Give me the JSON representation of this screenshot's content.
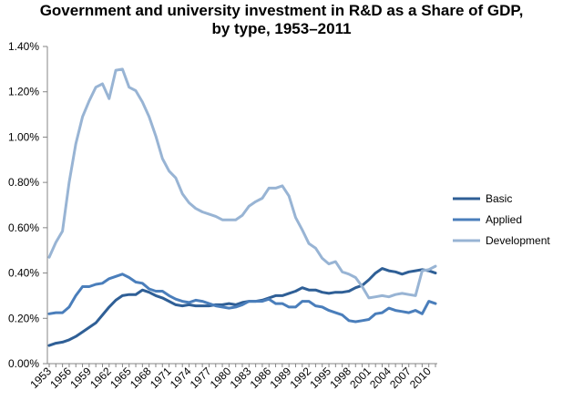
{
  "chart_data": {
    "type": "line",
    "title_lines": [
      "Government and university investment in R&D as a Share of GDP,",
      "by type, 1953–2011"
    ],
    "xlabel": "",
    "ylabel": "",
    "x_range": [
      1953,
      2011
    ],
    "x_tick_labels": [
      1953,
      1956,
      1959,
      1962,
      1965,
      1968,
      1971,
      1974,
      1977,
      1980,
      1983,
      1986,
      1989,
      1992,
      1995,
      1998,
      2001,
      2004,
      2007,
      2010
    ],
    "ylim": [
      0,
      1.4
    ],
    "y_tick_values": [
      0,
      0.2,
      0.4,
      0.6,
      0.8,
      1.0,
      1.2,
      1.4
    ],
    "y_tick_labels": [
      "0.00%",
      "0.20%",
      "0.40%",
      "0.60%",
      "0.80%",
      "1.00%",
      "1.20%",
      "1.40%"
    ],
    "grid": false,
    "legend": "right",
    "x": [
      1953,
      1954,
      1955,
      1956,
      1957,
      1958,
      1959,
      1960,
      1961,
      1962,
      1963,
      1964,
      1965,
      1966,
      1967,
      1968,
      1969,
      1970,
      1971,
      1972,
      1973,
      1974,
      1975,
      1976,
      1977,
      1978,
      1979,
      1980,
      1981,
      1982,
      1983,
      1984,
      1985,
      1986,
      1987,
      1988,
      1989,
      1990,
      1991,
      1992,
      1993,
      1994,
      1995,
      1996,
      1997,
      1998,
      1999,
      2000,
      2001,
      2002,
      2003,
      2004,
      2005,
      2006,
      2007,
      2008,
      2009,
      2010,
      2011
    ],
    "series": [
      {
        "name": "Basic",
        "color": "#2f5f96",
        "values": [
          0.08,
          0.09,
          0.095,
          0.105,
          0.12,
          0.14,
          0.16,
          0.18,
          0.215,
          0.25,
          0.28,
          0.3,
          0.305,
          0.305,
          0.325,
          0.315,
          0.3,
          0.29,
          0.275,
          0.26,
          0.255,
          0.26,
          0.255,
          0.255,
          0.255,
          0.26,
          0.26,
          0.265,
          0.26,
          0.27,
          0.275,
          0.275,
          0.28,
          0.29,
          0.3,
          0.3,
          0.31,
          0.32,
          0.335,
          0.325,
          0.325,
          0.315,
          0.31,
          0.315,
          0.315,
          0.32,
          0.335,
          0.345,
          0.37,
          0.4,
          0.42,
          0.41,
          0.405,
          0.395,
          0.405,
          0.41,
          0.415,
          0.41,
          0.4
        ]
      },
      {
        "name": "Applied",
        "color": "#4a7ebb",
        "values": [
          0.22,
          0.225,
          0.225,
          0.25,
          0.3,
          0.34,
          0.34,
          0.35,
          0.355,
          0.375,
          0.385,
          0.395,
          0.38,
          0.36,
          0.355,
          0.33,
          0.32,
          0.32,
          0.3,
          0.285,
          0.275,
          0.27,
          0.28,
          0.275,
          0.265,
          0.255,
          0.25,
          0.245,
          0.25,
          0.26,
          0.275,
          0.275,
          0.275,
          0.285,
          0.265,
          0.265,
          0.25,
          0.25,
          0.275,
          0.275,
          0.255,
          0.25,
          0.235,
          0.225,
          0.215,
          0.19,
          0.185,
          0.19,
          0.195,
          0.22,
          0.225,
          0.245,
          0.235,
          0.23,
          0.225,
          0.235,
          0.22,
          0.275,
          0.265
        ]
      },
      {
        "name": "Development",
        "color": "#98b4d4",
        "values": [
          0.47,
          0.535,
          0.585,
          0.8,
          0.97,
          1.09,
          1.16,
          1.22,
          1.235,
          1.17,
          1.295,
          1.3,
          1.22,
          1.205,
          1.155,
          1.09,
          1.005,
          0.905,
          0.85,
          0.82,
          0.75,
          0.71,
          0.685,
          0.67,
          0.66,
          0.65,
          0.635,
          0.635,
          0.635,
          0.655,
          0.695,
          0.715,
          0.73,
          0.775,
          0.775,
          0.785,
          0.74,
          0.645,
          0.59,
          0.53,
          0.51,
          0.465,
          0.44,
          0.45,
          0.405,
          0.395,
          0.38,
          0.34,
          0.29,
          0.295,
          0.3,
          0.295,
          0.305,
          0.31,
          0.305,
          0.3,
          0.41,
          0.415,
          0.43
        ]
      }
    ]
  }
}
